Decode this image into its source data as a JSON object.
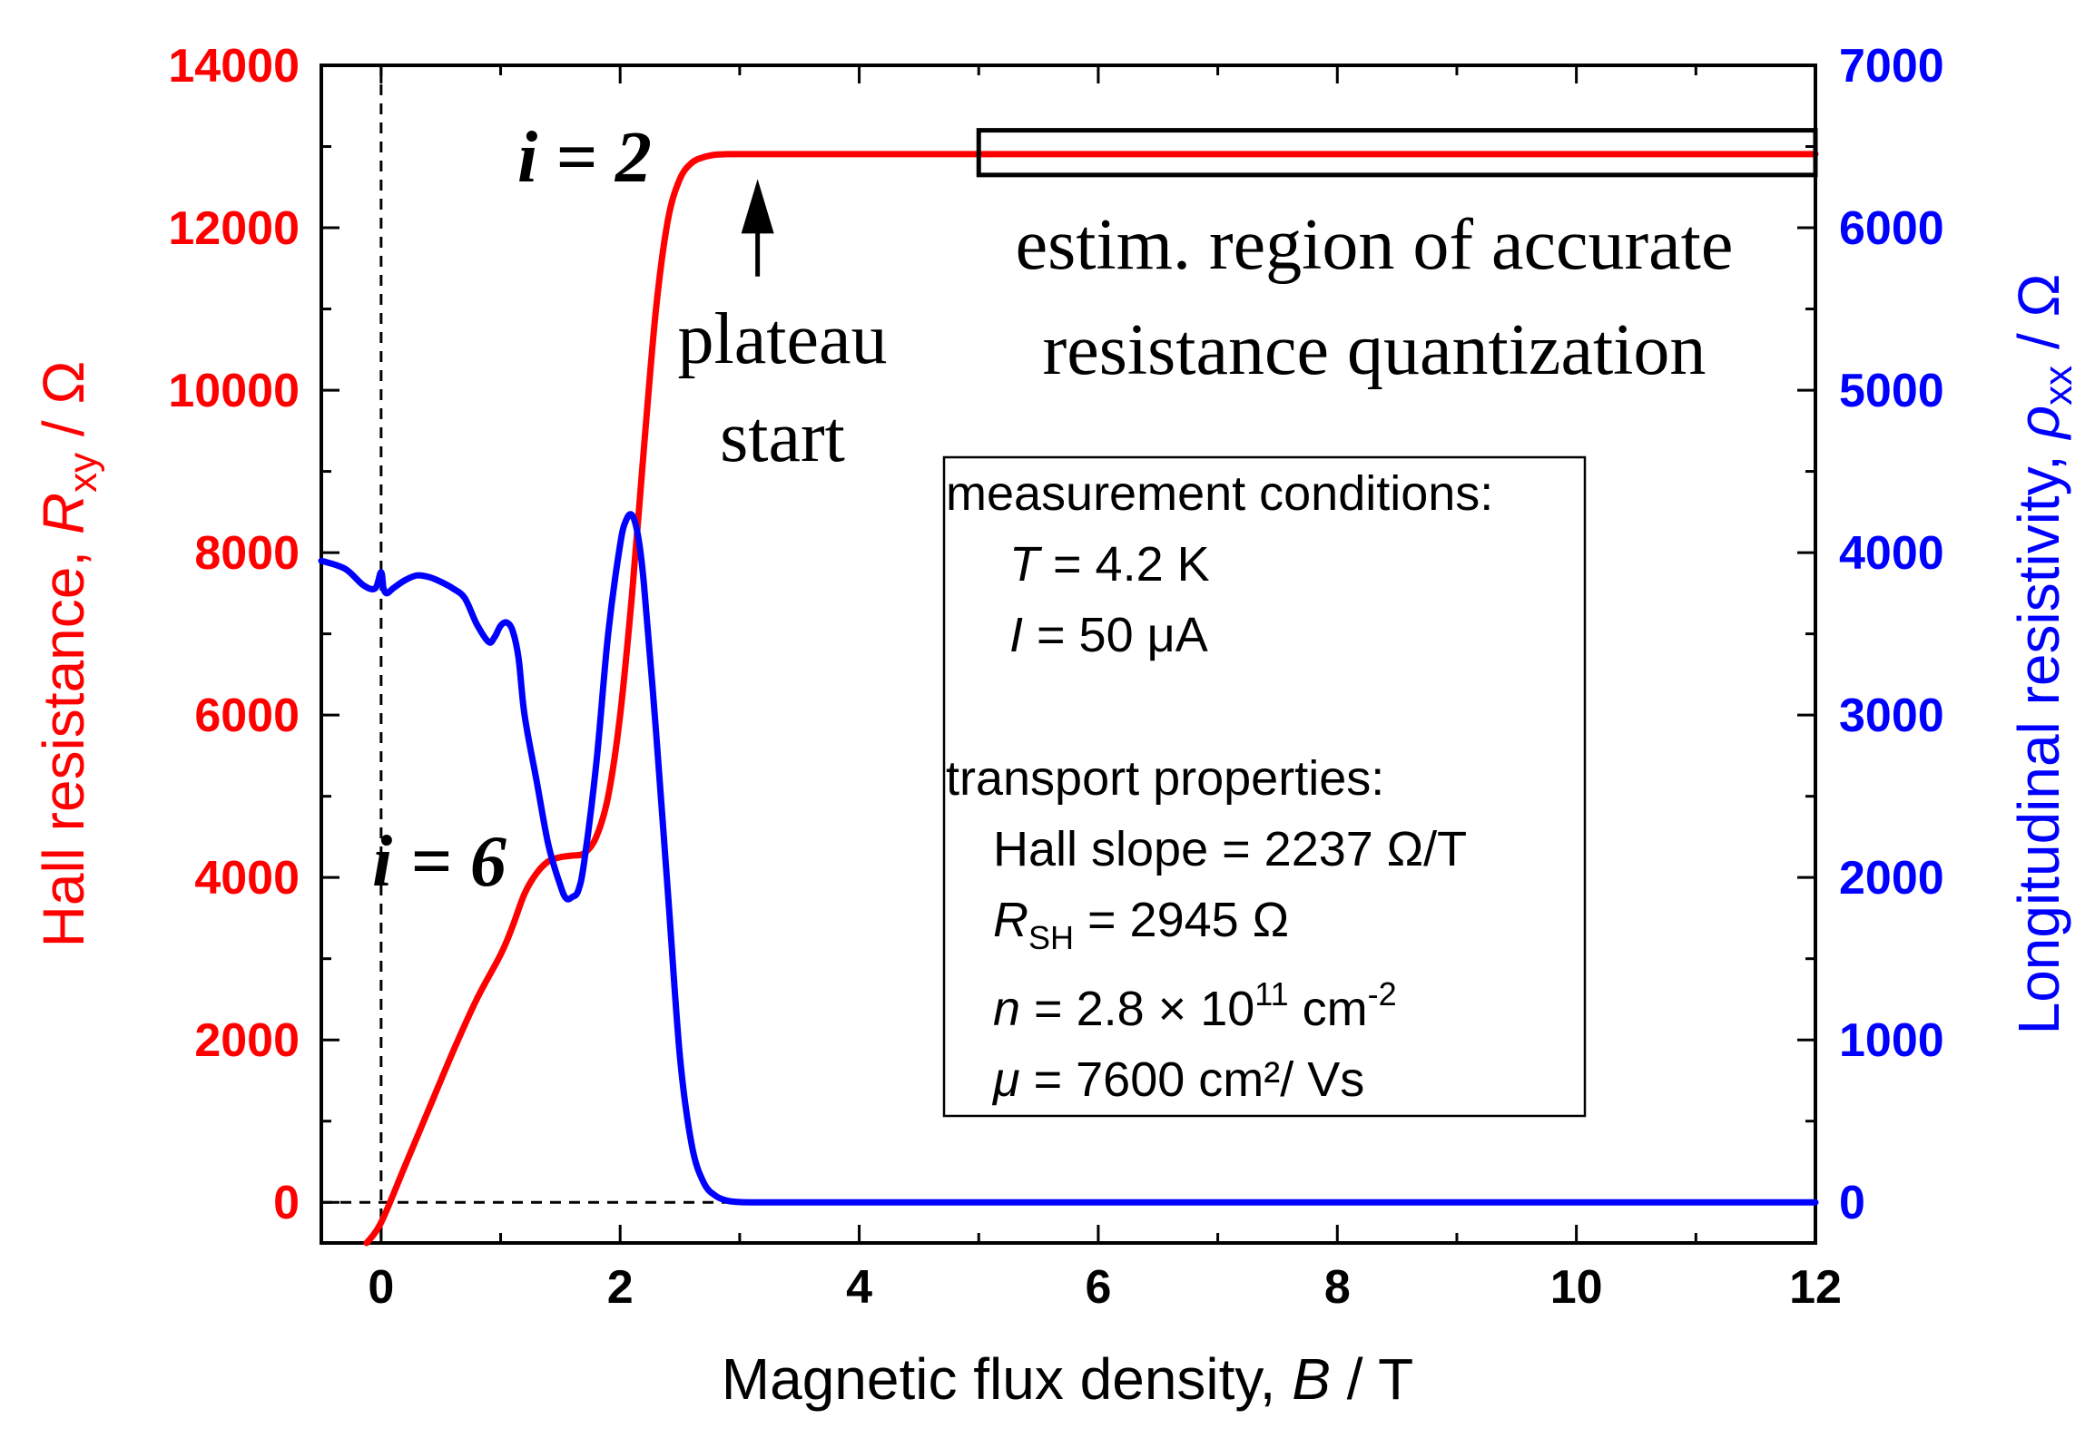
{
  "chart_data": {
    "type": "line",
    "xlabel": {
      "prefix": "Magnetic flux density, ",
      "var": "B",
      "suffix": " / T"
    },
    "ylabel_left": {
      "prefix": "Hall resistance, ",
      "var": "R",
      "sub": "xy",
      "suffix": " / Ω"
    },
    "ylabel_right": {
      "prefix": "Longitudinal resistivity, ",
      "var": "ρ",
      "sub": "xx",
      "suffix": " / Ω"
    },
    "xlim": [
      -0.5,
      12
    ],
    "ylim_left": [
      -500,
      14000
    ],
    "ylim_right": [
      -250,
      7000
    ],
    "x_ticks": [
      "0",
      "2",
      "4",
      "6",
      "8",
      "10",
      "12"
    ],
    "y_left_ticks": [
      "0",
      "2000",
      "4000",
      "6000",
      "8000",
      "10000",
      "12000",
      "14000"
    ],
    "y_right_ticks": [
      "0",
      "1000",
      "2000",
      "3000",
      "4000",
      "5000",
      "6000",
      "7000"
    ],
    "colors": {
      "hall": "#ff0000",
      "rho": "#0000ff",
      "axes": "#000000"
    },
    "series": [
      {
        "name": "Hall resistance R_xy",
        "axis": "left",
        "color": "#ff0000",
        "x": [
          -0.12,
          0.0,
          0.2,
          0.4,
          0.6,
          0.8,
          1.0,
          1.1,
          1.2,
          1.3,
          1.4,
          1.5,
          1.6,
          1.7,
          1.8,
          1.9,
          2.0,
          2.1,
          2.2,
          2.3,
          2.4,
          2.5,
          2.6,
          2.7,
          2.8,
          2.9,
          3.0,
          3.1,
          3.5,
          4.0,
          6.0,
          8.0,
          10.0,
          12.0
        ],
        "y": [
          -500,
          -250,
          450,
          1150,
          1850,
          2500,
          3050,
          3400,
          3800,
          4050,
          4200,
          4250,
          4270,
          4300,
          4500,
          5000,
          6000,
          7500,
          9300,
          11000,
          12100,
          12600,
          12800,
          12870,
          12900,
          12906,
          12906,
          12906,
          12906,
          12906,
          12906,
          12906,
          12906,
          12906
        ]
      },
      {
        "name": "Longitudinal resistivity rho_xx",
        "axis": "right",
        "color": "#0000ff",
        "x": [
          -0.5,
          -0.3,
          -0.15,
          -0.05,
          0.0,
          0.02,
          0.05,
          0.1,
          0.2,
          0.3,
          0.4,
          0.5,
          0.6,
          0.7,
          0.8,
          0.9,
          0.95,
          1.0,
          1.05,
          1.1,
          1.15,
          1.2,
          1.3,
          1.4,
          1.5,
          1.55,
          1.6,
          1.65,
          1.7,
          1.8,
          1.9,
          2.0,
          2.05,
          2.1,
          2.15,
          2.2,
          2.3,
          2.4,
          2.5,
          2.6,
          2.7,
          2.8,
          2.9,
          3.0,
          3.1,
          3.5,
          4.0,
          6.0,
          8.0,
          10.0,
          12.0
        ],
        "y": [
          3950,
          3900,
          3800,
          3780,
          3880,
          3780,
          3750,
          3780,
          3830,
          3860,
          3850,
          3820,
          3780,
          3720,
          3560,
          3450,
          3480,
          3550,
          3570,
          3520,
          3350,
          3000,
          2600,
          2200,
          1950,
          1870,
          1880,
          1920,
          2100,
          2700,
          3500,
          4050,
          4200,
          4230,
          4100,
          3800,
          2900,
          1900,
          900,
          350,
          120,
          40,
          10,
          2,
          0,
          0,
          0,
          0,
          0,
          0,
          0
        ]
      }
    ],
    "annotations": {
      "i2": "i = 2",
      "i6": "i = 6",
      "plateau_line1": "plateau",
      "plateau_line2": "start",
      "region_line1": "estim. region of accurate",
      "region_line2": "resistance quantization",
      "region_box_x": [
        5.0,
        12.0
      ],
      "region_box_y_left": [
        12650,
        13200
      ],
      "arrow_x": 3.15,
      "arrow_y_left": [
        11400,
        12600
      ],
      "dashed_zero_lines": {
        "x": 0,
        "y_left": 0
      }
    },
    "conditions_box": {
      "heading1": "measurement conditions:",
      "T": {
        "var": "T",
        "text": " = 4.2 K"
      },
      "I": {
        "var": "I",
        "text": " = 50 μA"
      },
      "heading2": "transport properties:",
      "hall_slope": "Hall slope = 2237 Ω/T",
      "rsh": {
        "var": "R",
        "sub": "SH",
        "text": " = 2945 Ω"
      },
      "n": {
        "var": "n",
        "text": " = 2.8 × 10",
        "sup": "11",
        "unit": " cm",
        "unit_sup": "-2"
      },
      "mu": {
        "var": "μ",
        "text": " = 7600 cm²/ Vs"
      }
    }
  }
}
